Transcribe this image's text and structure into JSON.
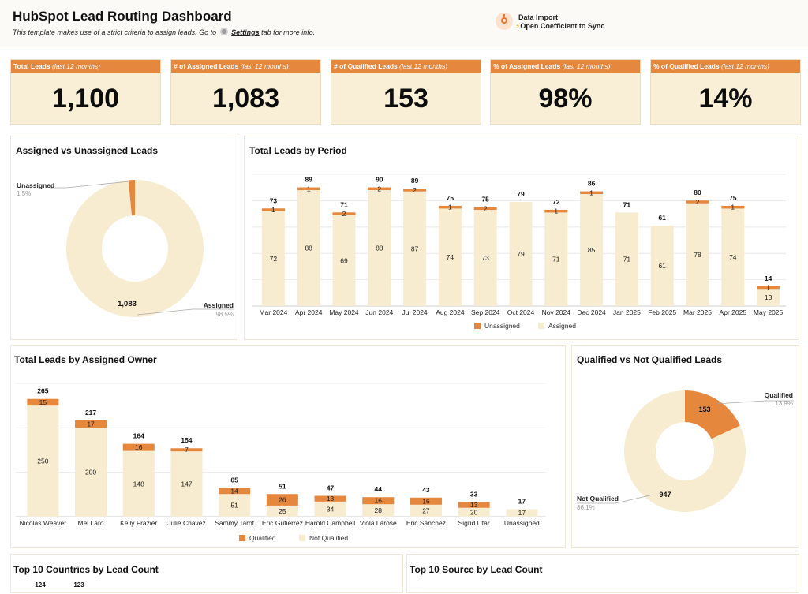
{
  "header": {
    "title": "HubSpot Lead Routing Dashboard",
    "subtitle_pre": "This template makes use of a strict criteria to assign leads. Go to",
    "subtitle_link": "Settings",
    "subtitle_post": "tab for more info.",
    "import_title": "Data Import",
    "import_bolt": "⚡",
    "import_action": "Open Coefficient to Sync"
  },
  "kpis": [
    {
      "label": "Total Leads",
      "period": "(last 12 months)",
      "value": "1,100"
    },
    {
      "label": "# of Assigned Leads",
      "period": "(last 12 months)",
      "value": "1,083"
    },
    {
      "label": "# of Qualified Leads",
      "period": "(last 12 months)",
      "value": "153"
    },
    {
      "label": "% of Assigned Leads",
      "period": "(last 12 months)",
      "value": "98%"
    },
    {
      "label": "% of Qualified Leads",
      "period": "(last 12 months)",
      "value": "14%"
    }
  ],
  "colors": {
    "orange": "#e6873e",
    "cream": "#f7ecd0",
    "grid": "#e5e5e5"
  },
  "chart_data": [
    {
      "id": "assigned-donut",
      "type": "pie",
      "title": "Assigned vs Unassigned Leads",
      "slices": [
        {
          "label": "Unassigned",
          "value": 17,
          "pct": "1.5%",
          "color": "#e6873e"
        },
        {
          "label": "Assigned",
          "value": 1083,
          "pct": "98.5%",
          "color": "#f7ecd0",
          "value_label": "1,083"
        }
      ]
    },
    {
      "id": "period-bars",
      "type": "bar",
      "stacked": true,
      "title": "Total Leads by Period",
      "categories": [
        "Mar 2024",
        "Apr 2024",
        "May 2024",
        "Jun 2024",
        "Jul 2024",
        "Aug 2024",
        "Sep 2024",
        "Oct 2024",
        "Nov 2024",
        "Dec 2024",
        "Jan 2025",
        "Feb 2025",
        "Mar 2025",
        "Apr 2025",
        "May 2025"
      ],
      "totals": [
        73,
        89,
        71,
        90,
        89,
        75,
        75,
        79,
        72,
        86,
        71,
        61,
        80,
        75,
        14
      ],
      "series": [
        {
          "name": "Assigned",
          "color": "#f7ecd0",
          "values": [
            72,
            88,
            69,
            88,
            87,
            74,
            73,
            79,
            71,
            85,
            71,
            61,
            78,
            74,
            13
          ]
        },
        {
          "name": "Unassigned",
          "color": "#e6873e",
          "values": [
            1,
            1,
            2,
            2,
            2,
            1,
            2,
            0,
            1,
            1,
            0,
            0,
            2,
            1,
            1
          ]
        }
      ],
      "legend": [
        "Unassigned",
        "Assigned"
      ],
      "ylim": [
        0,
        100
      ]
    },
    {
      "id": "owner-bars",
      "type": "bar",
      "stacked": true,
      "title": "Total Leads by Assigned Owner",
      "categories": [
        "Nicolas Weaver",
        "Mel Laro",
        "Kelly Frazier",
        "Julie Chavez",
        "Sammy Tarot",
        "Eric Gutierrez",
        "Harold Campbell",
        "Viola Larose",
        "Eric Sanchez",
        "Sigrid Utar",
        "Unassigned"
      ],
      "totals": [
        265,
        217,
        164,
        154,
        65,
        51,
        47,
        44,
        43,
        33,
        17
      ],
      "series": [
        {
          "name": "Not Qualified",
          "color": "#f7ecd0",
          "values": [
            250,
            200,
            148,
            147,
            51,
            25,
            34,
            28,
            27,
            20,
            17
          ]
        },
        {
          "name": "Qualified",
          "color": "#e6873e",
          "values": [
            15,
            17,
            16,
            7,
            14,
            26,
            13,
            16,
            16,
            13,
            0
          ]
        }
      ],
      "legend": [
        "Qualified",
        "Not Qualified"
      ],
      "ylim": [
        0,
        300
      ]
    },
    {
      "id": "qualified-donut",
      "type": "pie",
      "title": "Qualified vs Not Qualified Leads",
      "slices": [
        {
          "label": "Qualified",
          "value": 153,
          "pct": "13.9%",
          "color": "#e6873e",
          "value_label": "153"
        },
        {
          "label": "Not Qualified",
          "value": 947,
          "pct": "86.1%",
          "color": "#f7ecd0",
          "value_label": "947"
        }
      ]
    },
    {
      "id": "countries",
      "type": "bar",
      "title": "Top 10 Countries by Lead Count",
      "values": [
        124,
        123
      ]
    },
    {
      "id": "sources",
      "type": "bar",
      "title": "Top 10 Source by Lead Count",
      "values": []
    }
  ]
}
